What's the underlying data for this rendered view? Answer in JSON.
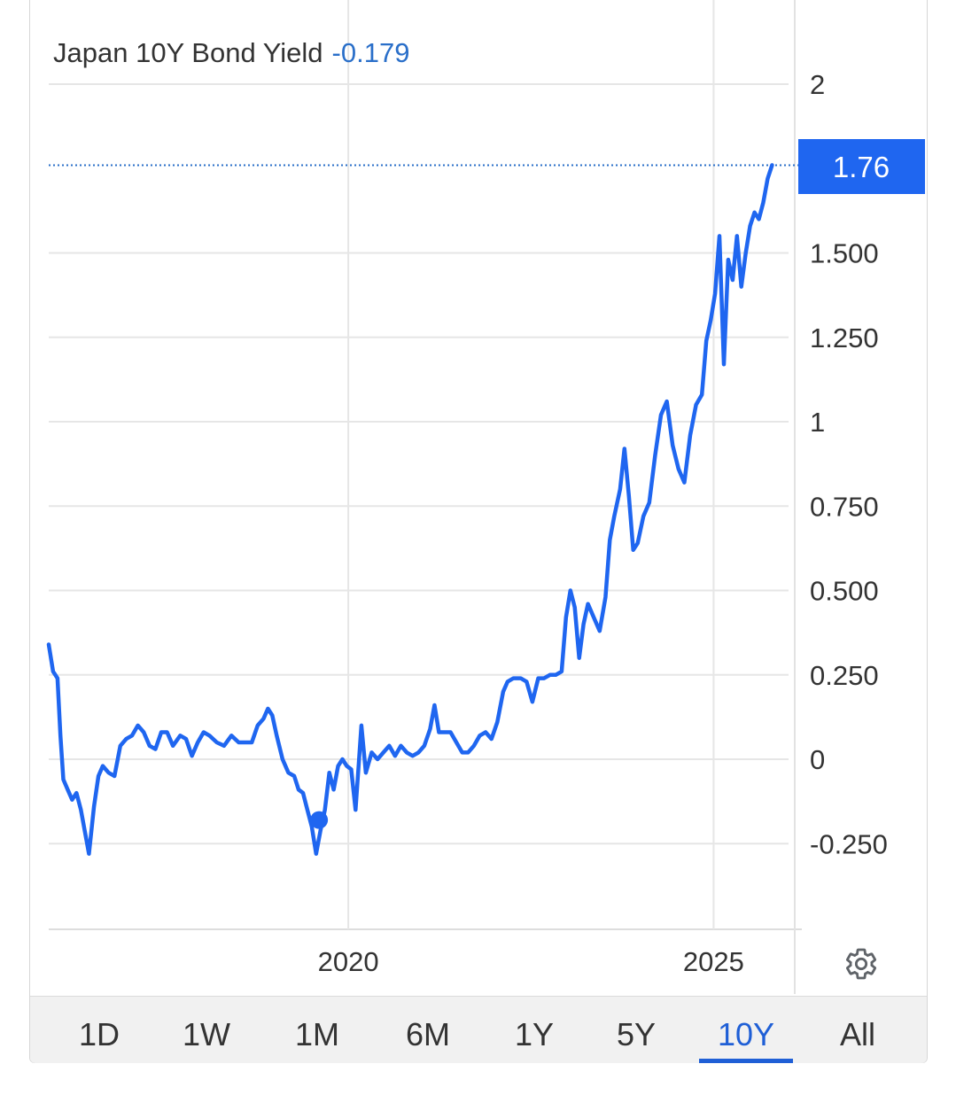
{
  "header": {
    "title": "Japan 10Y Bond Yield",
    "change": "-0.179"
  },
  "last_value_label": "1.76",
  "colors": {
    "line": "#1f66f0",
    "badge": "#1f66f0",
    "grid": "#e6e6e6",
    "active_tab": "#1f5fd6"
  },
  "tabs": [
    {
      "label": "1D",
      "active": false
    },
    {
      "label": "1W",
      "active": false
    },
    {
      "label": "1M",
      "active": false
    },
    {
      "label": "6M",
      "active": false
    },
    {
      "label": "1Y",
      "active": false
    },
    {
      "label": "5Y",
      "active": false
    },
    {
      "label": "10Y",
      "active": true
    },
    {
      "label": "All",
      "active": false
    }
  ],
  "settings_icon": "gear-icon",
  "chart_data": {
    "type": "line",
    "title": "Japan 10Y Bond Yield",
    "xlabel": "",
    "ylabel": "",
    "x_range": [
      2015.9,
      2026.05
    ],
    "ylim": [
      -0.5,
      2.1
    ],
    "y_ticks": [
      {
        "value": 2,
        "label": "2"
      },
      {
        "value": 1.5,
        "label": "1.500"
      },
      {
        "value": 1.25,
        "label": "1.250"
      },
      {
        "value": 1,
        "label": "1"
      },
      {
        "value": 0.75,
        "label": "0.750"
      },
      {
        "value": 0.5,
        "label": "0.500"
      },
      {
        "value": 0.25,
        "label": "0.250"
      },
      {
        "value": 0,
        "label": "0"
      },
      {
        "value": -0.25,
        "label": "-0.250"
      }
    ],
    "x_ticks": [
      {
        "value": 2020.0,
        "label": "2020"
      },
      {
        "value": 2025.0,
        "label": "2025"
      }
    ],
    "grid": true,
    "last_value": 1.76,
    "marker": {
      "x": 2019.6,
      "y": -0.18
    },
    "series": [
      {
        "values": [
          [
            2015.9,
            0.34
          ],
          [
            2015.96,
            0.26
          ],
          [
            2016.02,
            0.24
          ],
          [
            2016.06,
            0.07
          ],
          [
            2016.1,
            -0.06
          ],
          [
            2016.16,
            -0.09
          ],
          [
            2016.22,
            -0.12
          ],
          [
            2016.28,
            -0.1
          ],
          [
            2016.34,
            -0.15
          ],
          [
            2016.4,
            -0.22
          ],
          [
            2016.45,
            -0.28
          ],
          [
            2016.52,
            -0.14
          ],
          [
            2016.58,
            -0.05
          ],
          [
            2016.64,
            -0.02
          ],
          [
            2016.72,
            -0.04
          ],
          [
            2016.8,
            -0.05
          ],
          [
            2016.88,
            0.04
          ],
          [
            2016.96,
            0.06
          ],
          [
            2017.04,
            0.07
          ],
          [
            2017.12,
            0.1
          ],
          [
            2017.2,
            0.08
          ],
          [
            2017.28,
            0.04
          ],
          [
            2017.36,
            0.03
          ],
          [
            2017.44,
            0.08
          ],
          [
            2017.52,
            0.08
          ],
          [
            2017.6,
            0.04
          ],
          [
            2017.7,
            0.07
          ],
          [
            2017.78,
            0.06
          ],
          [
            2017.86,
            0.01
          ],
          [
            2017.94,
            0.05
          ],
          [
            2018.02,
            0.08
          ],
          [
            2018.1,
            0.07
          ],
          [
            2018.2,
            0.05
          ],
          [
            2018.3,
            0.04
          ],
          [
            2018.4,
            0.07
          ],
          [
            2018.5,
            0.05
          ],
          [
            2018.6,
            0.05
          ],
          [
            2018.68,
            0.05
          ],
          [
            2018.76,
            0.1
          ],
          [
            2018.84,
            0.12
          ],
          [
            2018.9,
            0.15
          ],
          [
            2018.96,
            0.13
          ],
          [
            2019.02,
            0.07
          ],
          [
            2019.1,
            0.0
          ],
          [
            2019.18,
            -0.04
          ],
          [
            2019.26,
            -0.05
          ],
          [
            2019.32,
            -0.09
          ],
          [
            2019.38,
            -0.1
          ],
          [
            2019.44,
            -0.15
          ],
          [
            2019.5,
            -0.2
          ],
          [
            2019.56,
            -0.28
          ],
          [
            2019.62,
            -0.21
          ],
          [
            2019.68,
            -0.15
          ],
          [
            2019.74,
            -0.04
          ],
          [
            2019.8,
            -0.09
          ],
          [
            2019.86,
            -0.02
          ],
          [
            2019.92,
            0.0
          ],
          [
            2019.98,
            -0.02
          ],
          [
            2020.04,
            -0.03
          ],
          [
            2020.1,
            -0.15
          ],
          [
            2020.18,
            0.1
          ],
          [
            2020.24,
            -0.04
          ],
          [
            2020.32,
            0.02
          ],
          [
            2020.4,
            0.0
          ],
          [
            2020.48,
            0.02
          ],
          [
            2020.56,
            0.04
          ],
          [
            2020.64,
            0.01
          ],
          [
            2020.72,
            0.04
          ],
          [
            2020.8,
            0.02
          ],
          [
            2020.88,
            0.01
          ],
          [
            2020.96,
            0.02
          ],
          [
            2021.04,
            0.04
          ],
          [
            2021.12,
            0.09
          ],
          [
            2021.18,
            0.16
          ],
          [
            2021.24,
            0.08
          ],
          [
            2021.32,
            0.08
          ],
          [
            2021.4,
            0.08
          ],
          [
            2021.48,
            0.05
          ],
          [
            2021.56,
            0.02
          ],
          [
            2021.64,
            0.02
          ],
          [
            2021.72,
            0.04
          ],
          [
            2021.8,
            0.07
          ],
          [
            2021.88,
            0.08
          ],
          [
            2021.96,
            0.06
          ],
          [
            2022.04,
            0.11
          ],
          [
            2022.12,
            0.2
          ],
          [
            2022.18,
            0.23
          ],
          [
            2022.26,
            0.24
          ],
          [
            2022.36,
            0.24
          ],
          [
            2022.44,
            0.23
          ],
          [
            2022.52,
            0.17
          ],
          [
            2022.6,
            0.24
          ],
          [
            2022.68,
            0.24
          ],
          [
            2022.76,
            0.25
          ],
          [
            2022.84,
            0.25
          ],
          [
            2022.92,
            0.26
          ],
          [
            2022.98,
            0.42
          ],
          [
            2023.04,
            0.5
          ],
          [
            2023.1,
            0.45
          ],
          [
            2023.16,
            0.3
          ],
          [
            2023.22,
            0.4
          ],
          [
            2023.28,
            0.46
          ],
          [
            2023.36,
            0.42
          ],
          [
            2023.44,
            0.38
          ],
          [
            2023.52,
            0.48
          ],
          [
            2023.58,
            0.65
          ],
          [
            2023.64,
            0.72
          ],
          [
            2023.72,
            0.8
          ],
          [
            2023.78,
            0.92
          ],
          [
            2023.84,
            0.78
          ],
          [
            2023.9,
            0.62
          ],
          [
            2023.96,
            0.64
          ],
          [
            2024.04,
            0.72
          ],
          [
            2024.12,
            0.76
          ],
          [
            2024.2,
            0.9
          ],
          [
            2024.28,
            1.02
          ],
          [
            2024.36,
            1.06
          ],
          [
            2024.44,
            0.93
          ],
          [
            2024.52,
            0.86
          ],
          [
            2024.6,
            0.82
          ],
          [
            2024.68,
            0.96
          ],
          [
            2024.76,
            1.05
          ],
          [
            2024.84,
            1.08
          ],
          [
            2024.9,
            1.24
          ],
          [
            2024.96,
            1.3
          ],
          [
            2025.02,
            1.38
          ],
          [
            2025.08,
            1.55
          ],
          [
            2025.14,
            1.17
          ],
          [
            2025.2,
            1.48
          ],
          [
            2025.26,
            1.42
          ],
          [
            2025.32,
            1.55
          ],
          [
            2025.38,
            1.4
          ],
          [
            2025.44,
            1.5
          ],
          [
            2025.5,
            1.58
          ],
          [
            2025.56,
            1.62
          ],
          [
            2025.62,
            1.6
          ],
          [
            2025.68,
            1.65
          ],
          [
            2025.74,
            1.72
          ],
          [
            2025.8,
            1.76
          ]
        ]
      }
    ]
  }
}
